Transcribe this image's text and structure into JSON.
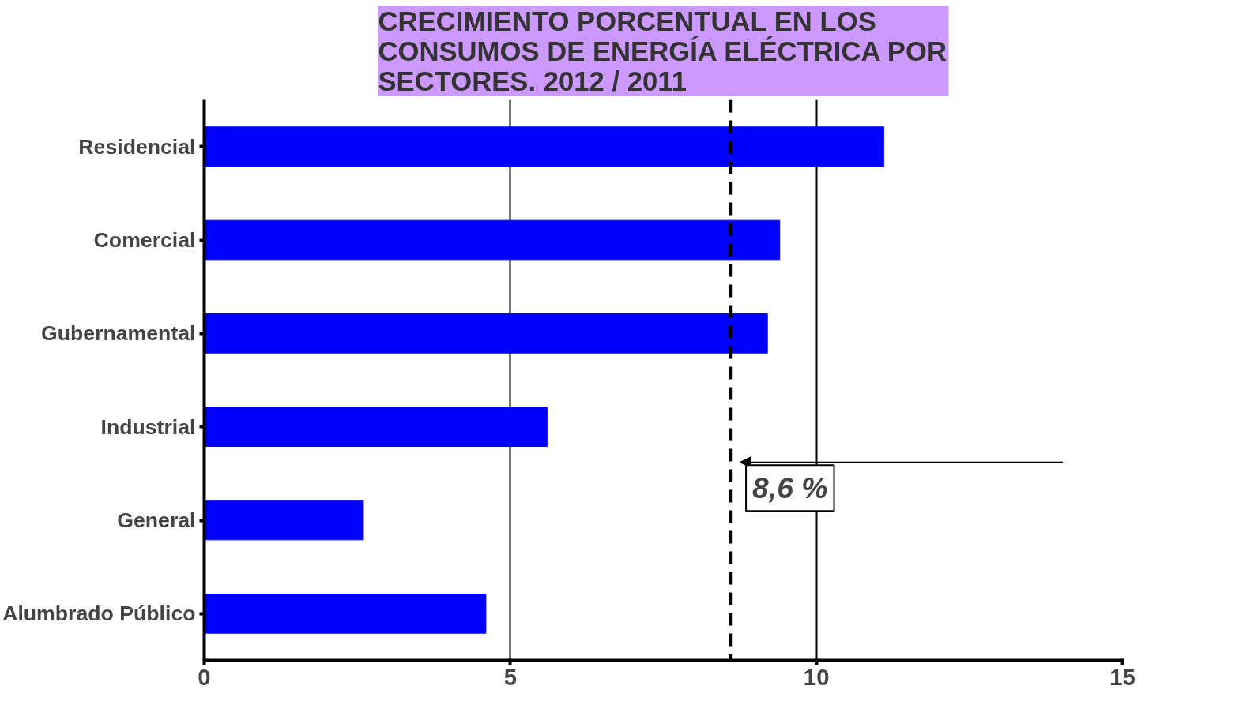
{
  "chart_data": {
    "type": "bar",
    "orientation": "horizontal",
    "title": "CRECIMIENTO PORCENTUAL EN LOS CONSUMOS DE ENERGÍA ELÉCTRICA POR SECTORES. 2012 / 2011",
    "categories": [
      "Residencial",
      "Comercial",
      "Gubernamental",
      "Industrial",
      "General",
      "Alumbrado Público"
    ],
    "values": [
      11.1,
      9.4,
      9.2,
      5.6,
      2.6,
      4.6
    ],
    "color": "#0000ff",
    "xlim": [
      0,
      15
    ],
    "xticks": [
      0,
      5,
      10,
      15
    ],
    "grid": "x",
    "ref_lines": [
      {
        "axis": "x",
        "value": 8.6,
        "label": "8,6 %",
        "color": "#000000",
        "line_style": "dashed"
      }
    ]
  }
}
